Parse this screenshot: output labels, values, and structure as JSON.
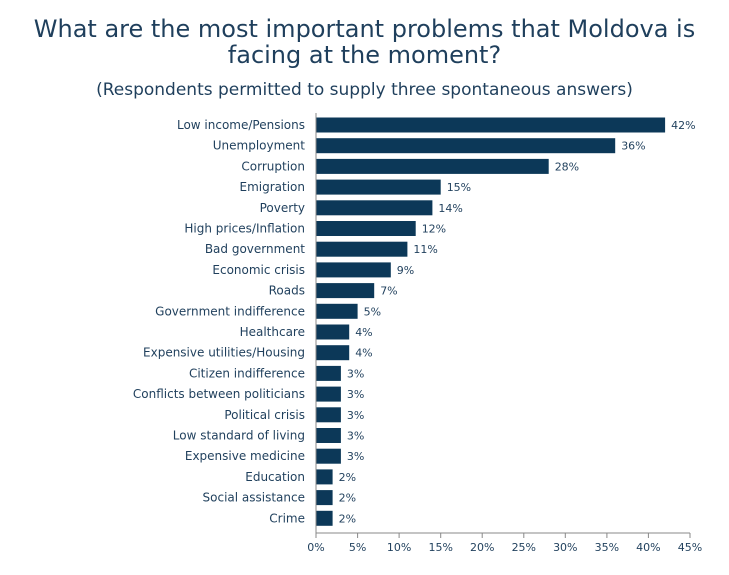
{
  "title": "What are the most important problems that Moldova is facing at the moment?",
  "subtitle": "(Respondents permitted to supply three spontaneous answers)",
  "colors": {
    "bar": "#0c3858",
    "text": "#1f3f5c",
    "axis": "#888888"
  },
  "chart_data": {
    "type": "bar",
    "orientation": "horizontal",
    "title": "What are the most important problems that Moldova is facing at the moment?",
    "subtitle": "(Respondents permitted to supply three spontaneous answers)",
    "categories": [
      "Low income/Pensions",
      "Unemployment",
      "Corruption",
      "Emigration",
      "Poverty",
      "High prices/Inflation",
      "Bad government",
      "Economic crisis",
      "Roads",
      "Government indifference",
      "Healthcare",
      "Expensive utilities/Housing",
      "Citizen indifference",
      "Conflicts between politicians",
      "Political crisis",
      "Low standard of living",
      "Expensive medicine",
      "Education",
      "Social assistance",
      "Crime"
    ],
    "values": [
      42,
      36,
      28,
      15,
      14,
      12,
      11,
      9,
      7,
      5,
      4,
      4,
      3,
      3,
      3,
      3,
      3,
      2,
      2,
      2
    ],
    "value_labels": [
      "42%",
      "36%",
      "28%",
      "15%",
      "14%",
      "12%",
      "11%",
      "9%",
      "7%",
      "5%",
      "4%",
      "4%",
      "3%",
      "3%",
      "3%",
      "3%",
      "3%",
      "2%",
      "2%",
      "2%"
    ],
    "xlim": [
      0,
      45
    ],
    "xticks": [
      0,
      5,
      10,
      15,
      20,
      25,
      30,
      35,
      40,
      45
    ],
    "xtick_labels": [
      "0%",
      "5%",
      "10%",
      "15%",
      "20%",
      "25%",
      "30%",
      "35%",
      "40%",
      "45%"
    ],
    "xlabel": "",
    "ylabel": "",
    "grid": false,
    "legend": "none"
  }
}
